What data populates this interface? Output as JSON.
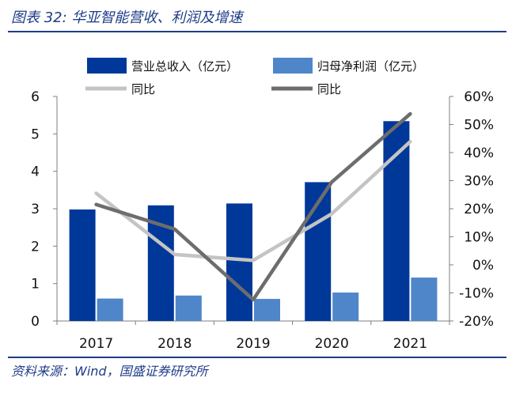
{
  "header": {
    "title": "图表 32:  华亚智能营收、利润及增速"
  },
  "footer": {
    "source": "资料来源：Wind，国盛证券研究所"
  },
  "colors": {
    "revenue": "#00389a",
    "profit": "#4f86c9",
    "revenue_yoy": "#c4c4c4",
    "profit_yoy": "#6d6d6d",
    "axis": "#7f7f7f"
  },
  "chart_data": {
    "type": "bar",
    "categories": [
      "2017",
      "2018",
      "2019",
      "2020",
      "2021"
    ],
    "series": [
      {
        "name": "营业总收入（亿元）",
        "kind": "bar",
        "axis": "left",
        "values": [
          2.98,
          3.09,
          3.14,
          3.71,
          5.34
        ]
      },
      {
        "name": "归母净利润（亿元）",
        "kind": "bar",
        "axis": "left",
        "values": [
          0.6,
          0.68,
          0.59,
          0.76,
          1.16
        ]
      },
      {
        "name": "同比",
        "kind": "line",
        "axis": "right",
        "values": [
          25.5,
          3.7,
          1.6,
          18.2,
          43.9
        ]
      },
      {
        "name": "同比",
        "kind": "line",
        "axis": "right",
        "values": [
          21.5,
          12.7,
          -12.4,
          29.5,
          53.8
        ]
      }
    ],
    "y_left": {
      "min": 0,
      "max": 6,
      "ticks": [
        "0",
        "1",
        "2",
        "3",
        "4",
        "5",
        "6"
      ]
    },
    "y_right": {
      "min": -20,
      "max": 60,
      "ticks": [
        "-20%",
        "-10%",
        "0%",
        "10%",
        "20%",
        "30%",
        "40%",
        "50%",
        "60%"
      ]
    },
    "legend_position": "top",
    "grid": false
  }
}
